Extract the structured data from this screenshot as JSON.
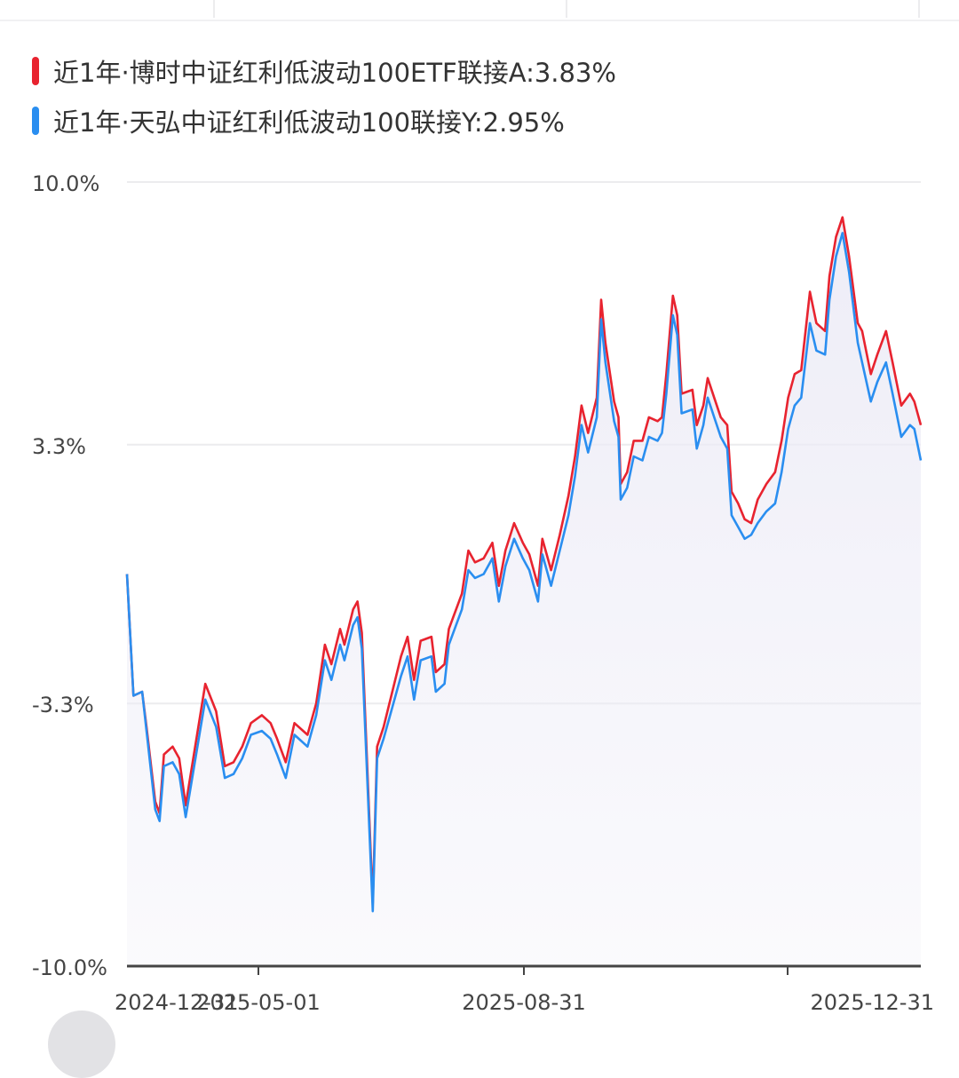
{
  "legend": {
    "series_a": "近1年·博时中证红利低波动100ETF联接A:3.83%",
    "series_b": "近1年·天弘中证红利低波动100联接Y:2.95%"
  },
  "colors": {
    "series_a": "#e8232f",
    "series_b": "#2a8ef0",
    "grid": "#ececee",
    "axis": "#444444",
    "fill": "#ecebf6"
  },
  "chart_data": {
    "type": "line",
    "ylim": [
      -10.0,
      10.0
    ],
    "y_tick_labels": [
      "10.0%",
      "3.3%",
      "-3.3%",
      "-10.0%"
    ],
    "x_tick_labels": [
      "2024-12-31",
      "2025-05-01",
      "2025-08-31",
      "2025-12-31"
    ],
    "x_start": "2024-12-31",
    "x_end": "2025-12-31",
    "grid": true,
    "legend_position": "top-left",
    "series": [
      {
        "name": "近1年·博时中证红利低波动100ETF联接A:3.83%",
        "points": [
          [
            "2024-12-31",
            0.0
          ],
          [
            "2025-01-03",
            -3.1
          ],
          [
            "2025-01-07",
            -3.0
          ],
          [
            "2025-01-09",
            -3.9
          ],
          [
            "2025-01-13",
            -5.8
          ],
          [
            "2025-01-15",
            -6.1
          ],
          [
            "2025-01-17",
            -4.6
          ],
          [
            "2025-01-21",
            -4.4
          ],
          [
            "2025-01-24",
            -4.7
          ],
          [
            "2025-01-27",
            -5.9
          ],
          [
            "2025-02-05",
            -2.8
          ],
          [
            "2025-02-10",
            -3.5
          ],
          [
            "2025-02-14",
            -4.9
          ],
          [
            "2025-02-18",
            -4.8
          ],
          [
            "2025-02-22",
            -4.4
          ],
          [
            "2025-02-26",
            -3.8
          ],
          [
            "2025-03-03",
            -3.6
          ],
          [
            "2025-03-07",
            -3.8
          ],
          [
            "2025-03-10",
            -4.2
          ],
          [
            "2025-03-14",
            -4.8
          ],
          [
            "2025-03-18",
            -3.8
          ],
          [
            "2025-03-24",
            -4.1
          ],
          [
            "2025-03-28",
            -3.3
          ],
          [
            "2025-04-01",
            -1.8
          ],
          [
            "2025-04-04",
            -2.3
          ],
          [
            "2025-04-08",
            -1.4
          ],
          [
            "2025-04-10",
            -1.8
          ],
          [
            "2025-04-14",
            -0.9
          ],
          [
            "2025-04-16",
            -0.7
          ],
          [
            "2025-04-18",
            -1.5
          ],
          [
            "2025-04-23",
            -8.4
          ],
          [
            "2025-04-25",
            -4.4
          ],
          [
            "2025-04-28",
            -3.9
          ],
          [
            "2025-05-06",
            -2.1
          ],
          [
            "2025-05-09",
            -1.6
          ],
          [
            "2025-05-12",
            -2.7
          ],
          [
            "2025-05-15",
            -1.7
          ],
          [
            "2025-05-20",
            -1.6
          ],
          [
            "2025-05-22",
            -2.5
          ],
          [
            "2025-05-26",
            -2.3
          ],
          [
            "2025-05-28",
            -1.4
          ],
          [
            "2025-06-03",
            -0.5
          ],
          [
            "2025-06-06",
            0.6
          ],
          [
            "2025-06-09",
            0.3
          ],
          [
            "2025-06-13",
            0.4
          ],
          [
            "2025-06-17",
            0.8
          ],
          [
            "2025-06-20",
            -0.3
          ],
          [
            "2025-06-23",
            0.6
          ],
          [
            "2025-06-27",
            1.3
          ],
          [
            "2025-07-01",
            0.8
          ],
          [
            "2025-07-04",
            0.5
          ],
          [
            "2025-07-08",
            -0.3
          ],
          [
            "2025-07-10",
            0.9
          ],
          [
            "2025-07-14",
            0.1
          ],
          [
            "2025-07-18",
            1.0
          ],
          [
            "2025-07-22",
            2.0
          ],
          [
            "2025-07-25",
            3.0
          ],
          [
            "2025-07-28",
            4.3
          ],
          [
            "2025-07-31",
            3.6
          ],
          [
            "2025-08-04",
            4.5
          ],
          [
            "2025-08-06",
            7.0
          ],
          [
            "2025-08-08",
            5.9
          ],
          [
            "2025-08-12",
            4.4
          ],
          [
            "2025-08-14",
            4.0
          ],
          [
            "2025-08-15",
            2.3
          ],
          [
            "2025-08-18",
            2.6
          ],
          [
            "2025-08-21",
            3.4
          ],
          [
            "2025-08-25",
            3.4
          ],
          [
            "2025-08-28",
            4.0
          ],
          [
            "2025-09-01",
            3.9
          ],
          [
            "2025-09-03",
            4.0
          ],
          [
            "2025-09-05",
            5.1
          ],
          [
            "2025-09-08",
            7.1
          ],
          [
            "2025-09-10",
            6.6
          ],
          [
            "2025-09-12",
            4.6
          ],
          [
            "2025-09-17",
            4.7
          ],
          [
            "2025-09-19",
            3.8
          ],
          [
            "2025-09-22",
            4.3
          ],
          [
            "2025-09-24",
            5.0
          ],
          [
            "2025-09-27",
            4.5
          ],
          [
            "2025-09-30",
            4.0
          ],
          [
            "2025-10-03",
            3.8
          ],
          [
            "2025-10-05",
            2.1
          ],
          [
            "2025-10-08",
            1.8
          ],
          [
            "2025-10-11",
            1.4
          ],
          [
            "2025-10-14",
            1.3
          ],
          [
            "2025-10-17",
            1.9
          ],
          [
            "2025-10-21",
            2.3
          ],
          [
            "2025-10-25",
            2.6
          ],
          [
            "2025-10-28",
            3.4
          ],
          [
            "2025-10-31",
            4.5
          ],
          [
            "2025-11-03",
            5.1
          ],
          [
            "2025-11-06",
            5.2
          ],
          [
            "2025-11-10",
            7.2
          ],
          [
            "2025-11-13",
            6.4
          ],
          [
            "2025-11-17",
            6.2
          ],
          [
            "2025-11-19",
            7.6
          ],
          [
            "2025-11-22",
            8.6
          ],
          [
            "2025-11-25",
            9.1
          ],
          [
            "2025-11-28",
            8.1
          ],
          [
            "2025-12-02",
            6.4
          ],
          [
            "2025-12-04",
            6.2
          ],
          [
            "2025-12-08",
            5.1
          ],
          [
            "2025-12-11",
            5.6
          ],
          [
            "2025-12-15",
            6.2
          ],
          [
            "2025-12-18",
            5.4
          ],
          [
            "2025-12-22",
            4.3
          ],
          [
            "2025-12-26",
            4.6
          ],
          [
            "2025-12-28",
            4.4
          ],
          [
            "2025-12-31",
            3.8
          ]
        ]
      },
      {
        "name": "近1年·天弘中证红利低波动100联接Y:2.95%",
        "points": [
          [
            "2024-12-31",
            0.0
          ],
          [
            "2025-01-03",
            -3.1
          ],
          [
            "2025-01-07",
            -3.0
          ],
          [
            "2025-01-09",
            -4.0
          ],
          [
            "2025-01-13",
            -6.0
          ],
          [
            "2025-01-15",
            -6.3
          ],
          [
            "2025-01-17",
            -4.9
          ],
          [
            "2025-01-21",
            -4.8
          ],
          [
            "2025-01-24",
            -5.1
          ],
          [
            "2025-01-27",
            -6.2
          ],
          [
            "2025-02-05",
            -3.2
          ],
          [
            "2025-02-10",
            -3.9
          ],
          [
            "2025-02-14",
            -5.2
          ],
          [
            "2025-02-18",
            -5.1
          ],
          [
            "2025-02-22",
            -4.7
          ],
          [
            "2025-02-26",
            -4.1
          ],
          [
            "2025-03-03",
            -4.0
          ],
          [
            "2025-03-07",
            -4.2
          ],
          [
            "2025-03-10",
            -4.6
          ],
          [
            "2025-03-14",
            -5.2
          ],
          [
            "2025-03-18",
            -4.1
          ],
          [
            "2025-03-24",
            -4.4
          ],
          [
            "2025-03-28",
            -3.6
          ],
          [
            "2025-04-01",
            -2.2
          ],
          [
            "2025-04-04",
            -2.7
          ],
          [
            "2025-04-08",
            -1.8
          ],
          [
            "2025-04-10",
            -2.2
          ],
          [
            "2025-04-14",
            -1.3
          ],
          [
            "2025-04-16",
            -1.1
          ],
          [
            "2025-04-18",
            -1.9
          ],
          [
            "2025-04-23",
            -8.6
          ],
          [
            "2025-04-25",
            -4.7
          ],
          [
            "2025-04-28",
            -4.2
          ],
          [
            "2025-05-06",
            -2.6
          ],
          [
            "2025-05-09",
            -2.1
          ],
          [
            "2025-05-12",
            -3.2
          ],
          [
            "2025-05-15",
            -2.2
          ],
          [
            "2025-05-20",
            -2.1
          ],
          [
            "2025-05-22",
            -3.0
          ],
          [
            "2025-05-26",
            -2.8
          ],
          [
            "2025-05-28",
            -1.8
          ],
          [
            "2025-06-03",
            -0.9
          ],
          [
            "2025-06-06",
            0.1
          ],
          [
            "2025-06-09",
            -0.1
          ],
          [
            "2025-06-13",
            0.0
          ],
          [
            "2025-06-17",
            0.4
          ],
          [
            "2025-06-20",
            -0.7
          ],
          [
            "2025-06-23",
            0.2
          ],
          [
            "2025-06-27",
            0.9
          ],
          [
            "2025-07-01",
            0.4
          ],
          [
            "2025-07-04",
            0.1
          ],
          [
            "2025-07-08",
            -0.7
          ],
          [
            "2025-07-10",
            0.5
          ],
          [
            "2025-07-14",
            -0.3
          ],
          [
            "2025-07-18",
            0.6
          ],
          [
            "2025-07-22",
            1.5
          ],
          [
            "2025-07-25",
            2.5
          ],
          [
            "2025-07-28",
            3.8
          ],
          [
            "2025-07-31",
            3.1
          ],
          [
            "2025-08-04",
            4.0
          ],
          [
            "2025-08-06",
            6.5
          ],
          [
            "2025-08-08",
            5.4
          ],
          [
            "2025-08-12",
            3.9
          ],
          [
            "2025-08-14",
            3.5
          ],
          [
            "2025-08-15",
            1.9
          ],
          [
            "2025-08-18",
            2.2
          ],
          [
            "2025-08-21",
            3.0
          ],
          [
            "2025-08-25",
            2.9
          ],
          [
            "2025-08-28",
            3.5
          ],
          [
            "2025-09-01",
            3.4
          ],
          [
            "2025-09-03",
            3.6
          ],
          [
            "2025-09-05",
            4.6
          ],
          [
            "2025-09-08",
            6.6
          ],
          [
            "2025-09-10",
            6.1
          ],
          [
            "2025-09-12",
            4.1
          ],
          [
            "2025-09-17",
            4.2
          ],
          [
            "2025-09-19",
            3.2
          ],
          [
            "2025-09-22",
            3.8
          ],
          [
            "2025-09-24",
            4.5
          ],
          [
            "2025-09-27",
            4.0
          ],
          [
            "2025-09-30",
            3.5
          ],
          [
            "2025-10-03",
            3.2
          ],
          [
            "2025-10-05",
            1.5
          ],
          [
            "2025-10-08",
            1.2
          ],
          [
            "2025-10-11",
            0.9
          ],
          [
            "2025-10-14",
            1.0
          ],
          [
            "2025-10-17",
            1.3
          ],
          [
            "2025-10-21",
            1.6
          ],
          [
            "2025-10-25",
            1.8
          ],
          [
            "2025-10-28",
            2.6
          ],
          [
            "2025-10-31",
            3.7
          ],
          [
            "2025-11-03",
            4.3
          ],
          [
            "2025-11-06",
            4.5
          ],
          [
            "2025-11-10",
            6.4
          ],
          [
            "2025-11-13",
            5.7
          ],
          [
            "2025-11-17",
            5.6
          ],
          [
            "2025-11-19",
            7.0
          ],
          [
            "2025-11-22",
            8.1
          ],
          [
            "2025-11-25",
            8.7
          ],
          [
            "2025-11-28",
            7.7
          ],
          [
            "2025-12-02",
            5.9
          ],
          [
            "2025-12-04",
            5.4
          ],
          [
            "2025-12-08",
            4.4
          ],
          [
            "2025-12-11",
            4.9
          ],
          [
            "2025-12-15",
            5.4
          ],
          [
            "2025-12-18",
            4.6
          ],
          [
            "2025-12-22",
            3.5
          ],
          [
            "2025-12-26",
            3.8
          ],
          [
            "2025-12-28",
            3.7
          ],
          [
            "2025-12-31",
            2.9
          ]
        ]
      }
    ]
  }
}
